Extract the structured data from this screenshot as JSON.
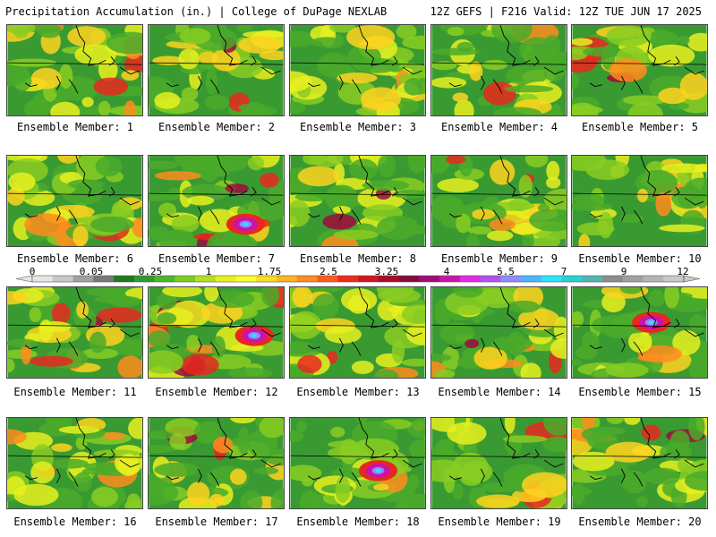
{
  "header": {
    "left": "Precipitation Accumulation (in.) | College of DuPage NEXLAB",
    "right": "12Z GEFS | F216 Valid: 12Z TUE JUN 17 2025"
  },
  "panels": [
    {
      "label": "Ensemble Member: 1"
    },
    {
      "label": "Ensemble Member: 2"
    },
    {
      "label": "Ensemble Member: 3"
    },
    {
      "label": "Ensemble Member: 4"
    },
    {
      "label": "Ensemble Member: 5"
    },
    {
      "label": "Ensemble Member: 6"
    },
    {
      "label": "Ensemble Member: 7"
    },
    {
      "label": "Ensemble Member: 8"
    },
    {
      "label": "Ensemble Member: 9"
    },
    {
      "label": "Ensemble Member: 10"
    },
    {
      "label": "Ensemble Member: 11"
    },
    {
      "label": "Ensemble Member: 12"
    },
    {
      "label": "Ensemble Member: 13"
    },
    {
      "label": "Ensemble Member: 14"
    },
    {
      "label": "Ensemble Member: 15"
    },
    {
      "label": "Ensemble Member: 16"
    },
    {
      "label": "Ensemble Member: 17"
    },
    {
      "label": "Ensemble Member: 18"
    },
    {
      "label": "Ensemble Member: 19"
    },
    {
      "label": "Ensemble Member: 20"
    }
  ],
  "colorbar": {
    "ticks": [
      "0",
      "0.05",
      "0.25",
      "1",
      "1.75",
      "2.5",
      "3.25",
      "4",
      "5.5",
      "7",
      "9",
      "12"
    ],
    "colors": [
      "#e6e6e6",
      "#c8c8c8",
      "#a0a0a0",
      "#787878",
      "#1e7a1e",
      "#2f9b2f",
      "#4cb52c",
      "#7acc1e",
      "#b4e01e",
      "#e6f01e",
      "#ffff28",
      "#ffdc1e",
      "#ffb41e",
      "#ff8c1e",
      "#ff5a1e",
      "#f0281e",
      "#d2141e",
      "#aa0a28",
      "#820a3c",
      "#a00a78",
      "#c814aa",
      "#e628e6",
      "#b450f0",
      "#8c8cff",
      "#50b4ff",
      "#28e6ff",
      "#28d2d2",
      "#50b4b4",
      "#8c8c8c",
      "#a0a0a0",
      "#b4b4b4",
      "#c8c8c8"
    ]
  }
}
